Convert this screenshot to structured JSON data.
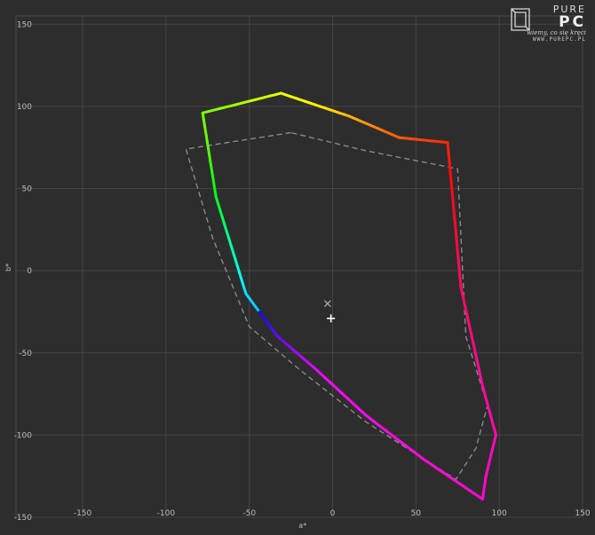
{
  "watermark": {
    "brand_top": "PURE",
    "brand_bottom": "PC",
    "tagline": "wiemy, co się kręci",
    "url": "WWW.PUREPC.PL"
  },
  "chart_data": {
    "type": "line",
    "title": "",
    "xlabel": "a*",
    "ylabel": "b*",
    "xlim": [
      -190,
      150
    ],
    "ylim": [
      -150,
      155
    ],
    "x_ticks": [
      -150,
      -100,
      -50,
      0,
      50,
      100,
      150
    ],
    "y_ticks": [
      150,
      100,
      50,
      0,
      -50,
      -100,
      -150
    ],
    "grid": true,
    "series": [
      {
        "style": "solid-rainbow",
        "points": [
          [
            -31,
            108
          ],
          [
            -78,
            96
          ],
          [
            -70,
            45
          ],
          [
            -52,
            -14
          ],
          [
            -33,
            -40
          ],
          [
            -10,
            -60
          ],
          [
            20,
            -88
          ],
          [
            55,
            -115
          ],
          [
            90,
            -139
          ],
          [
            92,
            -125
          ],
          [
            98,
            -100
          ],
          [
            90,
            -70
          ],
          [
            77,
            -10
          ],
          [
            69,
            78
          ],
          [
            40,
            81
          ],
          [
            10,
            94
          ],
          [
            -31,
            108
          ]
        ]
      },
      {
        "style": "dashed-gray",
        "points": [
          [
            -25,
            84
          ],
          [
            -88,
            74
          ],
          [
            -72,
            20
          ],
          [
            -50,
            -34
          ],
          [
            -20,
            -60
          ],
          [
            20,
            -92
          ],
          [
            74,
            -127
          ],
          [
            86,
            -108
          ],
          [
            93,
            -82
          ],
          [
            80,
            -40
          ],
          [
            75,
            62
          ],
          [
            20,
            73
          ],
          [
            -25,
            84
          ]
        ]
      }
    ],
    "markers": [
      {
        "symbol": "×",
        "x": -3,
        "y": -20
      },
      {
        "symbol": "+",
        "x": -1,
        "y": -29
      }
    ]
  }
}
